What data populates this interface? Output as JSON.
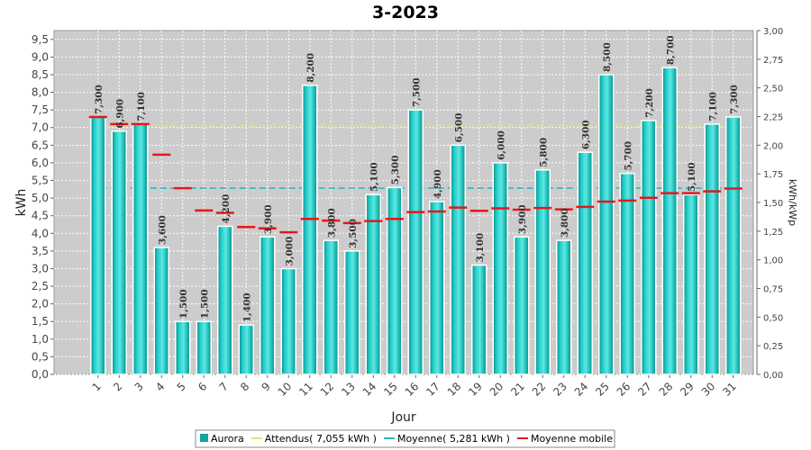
{
  "chart_data": {
    "type": "bar",
    "title": "3-2023",
    "xlabel": "Jour",
    "ylabel": "kWh",
    "ylabel_right": "kWh/kWp",
    "ylim": [
      0,
      9.75
    ],
    "ylim_right": [
      0,
      3.0
    ],
    "grid": true,
    "legend_position": "bottom",
    "categories": [
      "1",
      "2",
      "3",
      "4",
      "5",
      "6",
      "7",
      "8",
      "9",
      "10",
      "11",
      "12",
      "13",
      "14",
      "15",
      "16",
      "17",
      "18",
      "19",
      "20",
      "21",
      "22",
      "23",
      "24",
      "25",
      "26",
      "27",
      "28",
      "29",
      "30",
      "31"
    ],
    "y_ticks": [
      "0,0",
      "0,5",
      "1,0",
      "1,5",
      "2,0",
      "2,5",
      "3,0",
      "3,5",
      "4,0",
      "4,5",
      "5,0",
      "5,5",
      "6,0",
      "6,5",
      "7,0",
      "7,5",
      "8,0",
      "8,5",
      "9,0",
      "9,5"
    ],
    "y_right_ticks": [
      "0,00",
      "0,25",
      "0,50",
      "0,75",
      "1,00",
      "1,25",
      "1,50",
      "1,75",
      "2,00",
      "2,25",
      "2,50",
      "2,75",
      "3,00"
    ],
    "series": [
      {
        "name": "Aurora",
        "kind": "bar",
        "color": "#1ab8b3",
        "values": [
          7.3,
          6.9,
          7.1,
          3.6,
          1.5,
          1.5,
          4.2,
          1.4,
          3.9,
          3.0,
          8.2,
          3.8,
          3.5,
          5.1,
          5.3,
          7.5,
          4.9,
          6.5,
          3.1,
          6.0,
          3.9,
          5.8,
          3.8,
          6.3,
          8.5,
          5.7,
          7.2,
          8.7,
          5.1,
          7.1,
          7.3
        ],
        "labels": [
          "7,300",
          "6,900",
          "7,100",
          "3,600",
          "1,500",
          "1,500",
          "4,200",
          "1,400",
          "3,900",
          "3,000",
          "8,200",
          "3,800",
          "3,500",
          "5,100",
          "5,300",
          "7,500",
          "4,900",
          "6,500",
          "3,100",
          "6,000",
          "3,900",
          "5,800",
          "3,800",
          "6,300",
          "8,500",
          "5,700",
          "7,200",
          "8,700",
          "5,100",
          "7,100",
          "7,300"
        ]
      },
      {
        "name": "Attendus( 7,055 kWh )",
        "kind": "hline",
        "color": "#e6e066",
        "value": 7.055
      },
      {
        "name": "Moyenne( 5,281 kWh )",
        "kind": "hline",
        "color": "#2fb8c8",
        "value": 5.281
      },
      {
        "name": "Moyenne mobile",
        "kind": "step",
        "color": "#e8161b",
        "values": [
          7.3,
          7.1,
          7.1,
          6.23,
          5.28,
          4.65,
          4.58,
          4.18,
          4.14,
          4.03,
          4.41,
          4.36,
          4.29,
          4.35,
          4.41,
          4.6,
          4.62,
          4.73,
          4.64,
          4.71,
          4.67,
          4.72,
          4.68,
          4.75,
          4.9,
          4.93,
          5.01,
          5.14,
          5.14,
          5.19,
          5.27
        ]
      }
    ]
  }
}
